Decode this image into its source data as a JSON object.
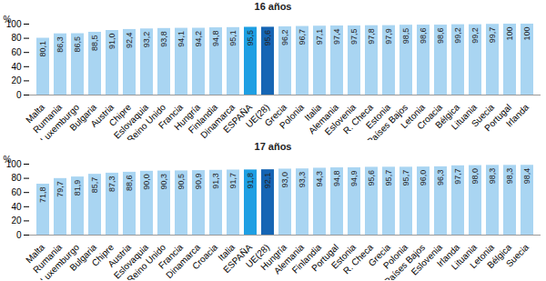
{
  "chart_data": [
    {
      "type": "bar",
      "title": "16 años",
      "y_label": "%",
      "categories": [
        "Malta",
        "Rumania",
        "Luxemburgo",
        "Bulgaria",
        "Austria",
        "Chipre",
        "Eslovaquia",
        "Reino Unido",
        "Francia",
        "Hungría",
        "Finlandia",
        "Dinamarca",
        "ESPAÑA",
        "UE(28)",
        "Grecia",
        "Polonia",
        "Italia",
        "Alemania",
        "Eslovenia",
        "R. Checa",
        "Estonia",
        "Países Bajos",
        "Letonia",
        "Croacia",
        "Bélgica",
        "Lituania",
        "Suecia",
        "Portugal",
        "Irlanda"
      ],
      "values": [
        80.1,
        86.3,
        86.5,
        88.5,
        91.0,
        92.4,
        93.2,
        93.8,
        94.1,
        94.2,
        94.8,
        95.1,
        95.5,
        95.6,
        96.2,
        96.7,
        97.1,
        97.4,
        97.5,
        97.8,
        97.9,
        98.5,
        98.6,
        98.6,
        99.2,
        99.2,
        99.7,
        100,
        100
      ],
      "value_labels": [
        "80,1",
        "86,3",
        "86,5",
        "88,5",
        "91,0",
        "92,4",
        "93,2",
        "93,8",
        "94,1",
        "94,2",
        "94,8",
        "95,1",
        "95,5",
        "95,6",
        "96,2",
        "96,7",
        "97,1",
        "97,4",
        "97,5",
        "97,8",
        "97,9",
        "98,5",
        "98,6",
        "98,6",
        "99,2",
        "99,2",
        "99,7",
        "100",
        "100"
      ],
      "colors": [
        "#a9d5f2",
        "#a9d5f2",
        "#a9d5f2",
        "#a9d5f2",
        "#a9d5f2",
        "#a9d5f2",
        "#a9d5f2",
        "#a9d5f2",
        "#a9d5f2",
        "#a9d5f2",
        "#a9d5f2",
        "#a9d5f2",
        "#1e9fe3",
        "#1565b4",
        "#a9d5f2",
        "#a9d5f2",
        "#a9d5f2",
        "#a9d5f2",
        "#a9d5f2",
        "#a9d5f2",
        "#a9d5f2",
        "#a9d5f2",
        "#a9d5f2",
        "#a9d5f2",
        "#a9d5f2",
        "#a9d5f2",
        "#a9d5f2",
        "#a9d5f2",
        "#a9d5f2"
      ],
      "ylim": [
        0,
        100
      ],
      "yticks": [
        0,
        20,
        40,
        60,
        80,
        100
      ],
      "grid": false,
      "data_labels": true
    },
    {
      "type": "bar",
      "title": "17 años",
      "y_label": "%",
      "categories": [
        "Malta",
        "Rumania",
        "Luxemburgo",
        "Bulgaria",
        "Chipre",
        "Austria",
        "Eslovaquia",
        "Reino Unido",
        "Francia",
        "Dinamarca",
        "Croacia",
        "Italia",
        "ESPAÑA",
        "UE(28)",
        "Hungría",
        "Alemania",
        "Finlandia",
        "Portugal",
        "Estonia",
        "R. Checa",
        "Grecia",
        "Polonia",
        "Países Bajos",
        "Eslovenia",
        "Irlanda",
        "Lituania",
        "Letonia",
        "Bélgica",
        "Suecia"
      ],
      "values": [
        71.8,
        79.7,
        81.9,
        85.7,
        87.3,
        88.6,
        90.0,
        90.3,
        90.5,
        90.9,
        91.3,
        91.7,
        91.8,
        92.1,
        93.0,
        93.3,
        94.3,
        94.8,
        94.9,
        95.6,
        95.7,
        95.7,
        96.0,
        96.3,
        97.7,
        98.0,
        98.3,
        98.3,
        98.4
      ],
      "value_labels": [
        "71,8",
        "79,7",
        "81,9",
        "85,7",
        "87,3",
        "88,6",
        "90,0",
        "90,3",
        "90,5",
        "90,9",
        "91,3",
        "91,7",
        "91,8",
        "92,1",
        "93,0",
        "93,3",
        "94,3",
        "94,8",
        "94,9",
        "95,6",
        "95,7",
        "95,7",
        "96,0",
        "96,3",
        "97,7",
        "98,0",
        "98,3",
        "98,3",
        "98,4"
      ],
      "colors": [
        "#a9d5f2",
        "#a9d5f2",
        "#a9d5f2",
        "#a9d5f2",
        "#a9d5f2",
        "#a9d5f2",
        "#a9d5f2",
        "#a9d5f2",
        "#a9d5f2",
        "#a9d5f2",
        "#a9d5f2",
        "#a9d5f2",
        "#1e9fe3",
        "#1565b4",
        "#a9d5f2",
        "#a9d5f2",
        "#a9d5f2",
        "#a9d5f2",
        "#a9d5f2",
        "#a9d5f2",
        "#a9d5f2",
        "#a9d5f2",
        "#a9d5f2",
        "#a9d5f2",
        "#a9d5f2",
        "#a9d5f2",
        "#a9d5f2",
        "#a9d5f2",
        "#a9d5f2"
      ],
      "ylim": [
        0,
        100
      ],
      "yticks": [
        0,
        20,
        40,
        60,
        80,
        100
      ],
      "grid": false,
      "data_labels": true
    }
  ]
}
